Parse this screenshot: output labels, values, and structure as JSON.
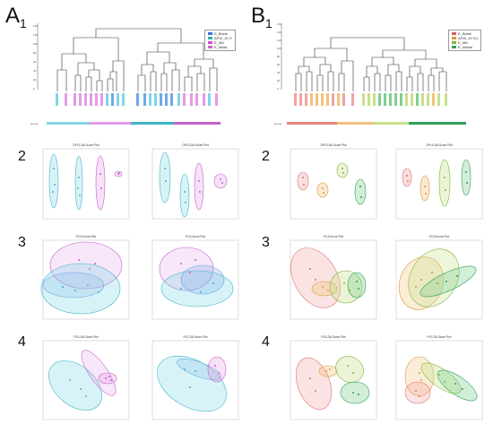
{
  "labels": {
    "A1": "A",
    "A1_sub": "1",
    "B1": "B",
    "B1_sub": "1",
    "rows_left": [
      "2",
      "3",
      "4"
    ],
    "rows_right": [
      "2",
      "3",
      "4"
    ]
  },
  "dendrogram_A": {
    "group_label": "Group",
    "y_ticks": [
      "0",
      "20",
      "40",
      "60",
      "80",
      "100",
      "120",
      "140"
    ],
    "legend": [
      "E_Blank",
      "APW_20 S",
      "E_Mix",
      "E_Mask"
    ],
    "legend_colors": [
      "#3a6fd8",
      "#2bb0a0",
      "#d64ec8",
      "#d45fd0"
    ]
  },
  "dendrogram_B": {
    "group_label": "Group",
    "y_ticks": [
      "0",
      "20",
      "40",
      "60",
      "80",
      "100",
      "120",
      "140",
      "160"
    ],
    "legend": [
      "E_Blank",
      "APW_20 S4",
      "E_Mix",
      "E_Waste"
    ],
    "legend_colors": [
      "#d55a5a",
      "#d69a3a",
      "#7fb53a",
      "#2f9e5a"
    ]
  },
  "colors": {
    "cyan": "#7fd6e6",
    "cyan_stroke": "#3fb4c8",
    "magenta": "#e49be6",
    "magenta_stroke": "#c760c9",
    "blue": "#6fa8e8",
    "salmon": "#f2a3a3",
    "orange": "#f2c27a",
    "lime": "#c8e08a",
    "green": "#7fcf8f"
  },
  "score_titles": {
    "row2_left": [
      "OPLS-DA Score Plot",
      "OPLS-DA Score Plot"
    ],
    "row3_left": [
      "PCA Score Plot",
      "PCA Score Plot"
    ],
    "row4_left": [
      "PLS-DA Score Plot",
      "PLS-DA Score Plot"
    ],
    "row2_right": [
      "OPLS-DA Score Plot",
      "OPLS-DA Score Plot"
    ],
    "row3_right": [
      "PCA Score Plot",
      "PCA Score Plot"
    ],
    "row4_right": [
      "PLS-DA Score Plot",
      "PLS-DA Score Plot"
    ]
  }
}
